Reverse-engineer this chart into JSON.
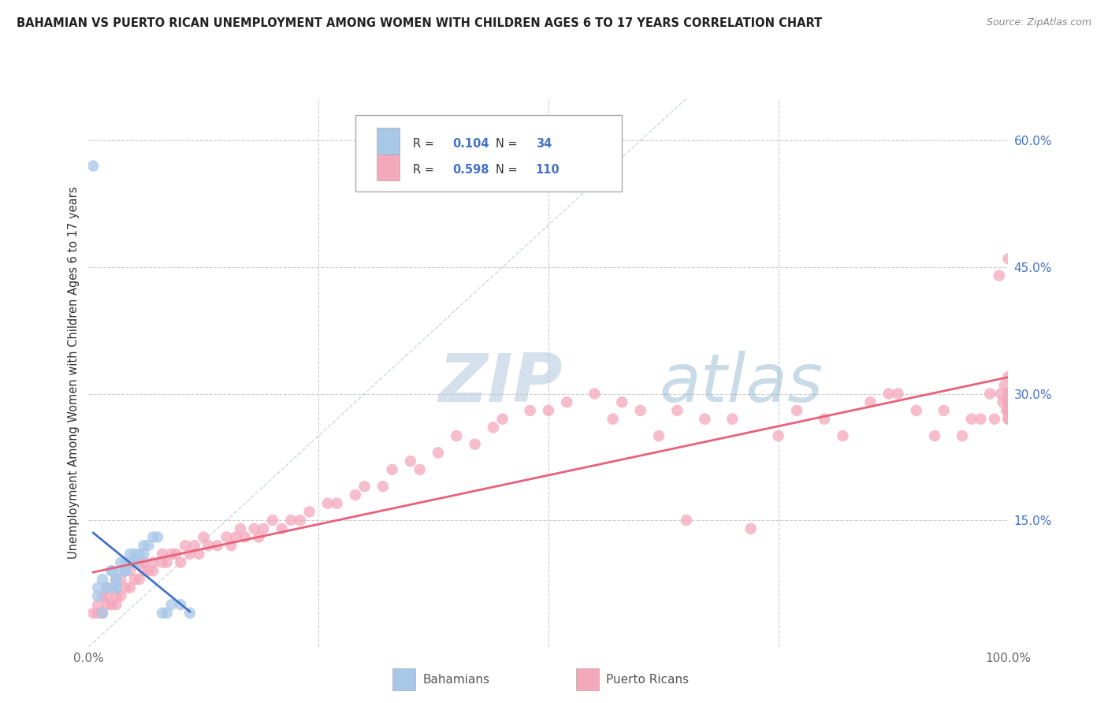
{
  "title": "BAHAMIAN VS PUERTO RICAN UNEMPLOYMENT AMONG WOMEN WITH CHILDREN AGES 6 TO 17 YEARS CORRELATION CHART",
  "source": "Source: ZipAtlas.com",
  "ylabel": "Unemployment Among Women with Children Ages 6 to 17 years",
  "xlim": [
    0.0,
    1.0
  ],
  "ylim": [
    0.0,
    0.65
  ],
  "xtick_positions": [
    0.0,
    1.0
  ],
  "xticklabels": [
    "0.0%",
    "100.0%"
  ],
  "ytick_positions": [
    0.0,
    0.15,
    0.3,
    0.45,
    0.6
  ],
  "yticklabels": [
    "",
    "15.0%",
    "30.0%",
    "45.0%",
    "60.0%"
  ],
  "bahamian_R": "0.104",
  "bahamian_N": "34",
  "puerto_rican_R": "0.598",
  "puerto_rican_N": "110",
  "color_bahamian": "#a8c8e8",
  "color_puerto_rican": "#f4a8bc",
  "color_bahamian_line": "#4472c4",
  "color_puerto_rican_line": "#e8607a",
  "color_diagonal": "#b8c8d8",
  "background_color": "#ffffff",
  "grid_color": "#cccccc",
  "legend_blue": "#4472c4",
  "bahamian_x": [
    0.005,
    0.01,
    0.01,
    0.015,
    0.02,
    0.02,
    0.025,
    0.025,
    0.03,
    0.03,
    0.03,
    0.03,
    0.035,
    0.035,
    0.04,
    0.04,
    0.04,
    0.045,
    0.045,
    0.05,
    0.05,
    0.05,
    0.055,
    0.06,
    0.06,
    0.065,
    0.07,
    0.075,
    0.08,
    0.085,
    0.09,
    0.1,
    0.11,
    0.015
  ],
  "bahamian_y": [
    0.57,
    0.07,
    0.06,
    0.08,
    0.07,
    0.07,
    0.09,
    0.09,
    0.08,
    0.08,
    0.07,
    0.07,
    0.09,
    0.1,
    0.09,
    0.09,
    0.1,
    0.1,
    0.11,
    0.1,
    0.1,
    0.11,
    0.11,
    0.12,
    0.11,
    0.12,
    0.13,
    0.13,
    0.04,
    0.04,
    0.05,
    0.05,
    0.04,
    0.04
  ],
  "puerto_rican_x": [
    0.005,
    0.01,
    0.01,
    0.015,
    0.015,
    0.02,
    0.02,
    0.02,
    0.025,
    0.025,
    0.03,
    0.03,
    0.03,
    0.035,
    0.035,
    0.04,
    0.04,
    0.045,
    0.045,
    0.05,
    0.055,
    0.055,
    0.06,
    0.06,
    0.065,
    0.07,
    0.07,
    0.08,
    0.08,
    0.085,
    0.09,
    0.095,
    0.1,
    0.105,
    0.11,
    0.115,
    0.12,
    0.125,
    0.13,
    0.14,
    0.15,
    0.155,
    0.16,
    0.165,
    0.17,
    0.18,
    0.185,
    0.19,
    0.2,
    0.21,
    0.22,
    0.23,
    0.24,
    0.26,
    0.27,
    0.29,
    0.3,
    0.32,
    0.33,
    0.35,
    0.36,
    0.38,
    0.4,
    0.42,
    0.44,
    0.45,
    0.48,
    0.5,
    0.52,
    0.55,
    0.57,
    0.58,
    0.6,
    0.62,
    0.64,
    0.65,
    0.67,
    0.7,
    0.72,
    0.75,
    0.77,
    0.8,
    0.82,
    0.85,
    0.87,
    0.88,
    0.9,
    0.92,
    0.93,
    0.95,
    0.96,
    0.97,
    0.98,
    0.985,
    0.99,
    0.992,
    0.994,
    0.996,
    0.998,
    1.0,
    1.0,
    1.0,
    1.0,
    1.0,
    1.0,
    1.0,
    1.0,
    1.0,
    1.0,
    1.0
  ],
  "puerto_rican_y": [
    0.04,
    0.04,
    0.05,
    0.04,
    0.06,
    0.05,
    0.06,
    0.07,
    0.05,
    0.07,
    0.05,
    0.06,
    0.08,
    0.06,
    0.08,
    0.07,
    0.09,
    0.07,
    0.09,
    0.08,
    0.08,
    0.1,
    0.09,
    0.1,
    0.09,
    0.09,
    0.1,
    0.1,
    0.11,
    0.1,
    0.11,
    0.11,
    0.1,
    0.12,
    0.11,
    0.12,
    0.11,
    0.13,
    0.12,
    0.12,
    0.13,
    0.12,
    0.13,
    0.14,
    0.13,
    0.14,
    0.13,
    0.14,
    0.15,
    0.14,
    0.15,
    0.15,
    0.16,
    0.17,
    0.17,
    0.18,
    0.19,
    0.19,
    0.21,
    0.22,
    0.21,
    0.23,
    0.25,
    0.24,
    0.26,
    0.27,
    0.28,
    0.28,
    0.29,
    0.3,
    0.27,
    0.29,
    0.28,
    0.25,
    0.28,
    0.15,
    0.27,
    0.27,
    0.14,
    0.25,
    0.28,
    0.27,
    0.25,
    0.29,
    0.3,
    0.3,
    0.28,
    0.25,
    0.28,
    0.25,
    0.27,
    0.27,
    0.3,
    0.27,
    0.44,
    0.3,
    0.29,
    0.31,
    0.28,
    0.29,
    0.3,
    0.27,
    0.28,
    0.32,
    0.3,
    0.27,
    0.29,
    0.28,
    0.46,
    0.28
  ]
}
